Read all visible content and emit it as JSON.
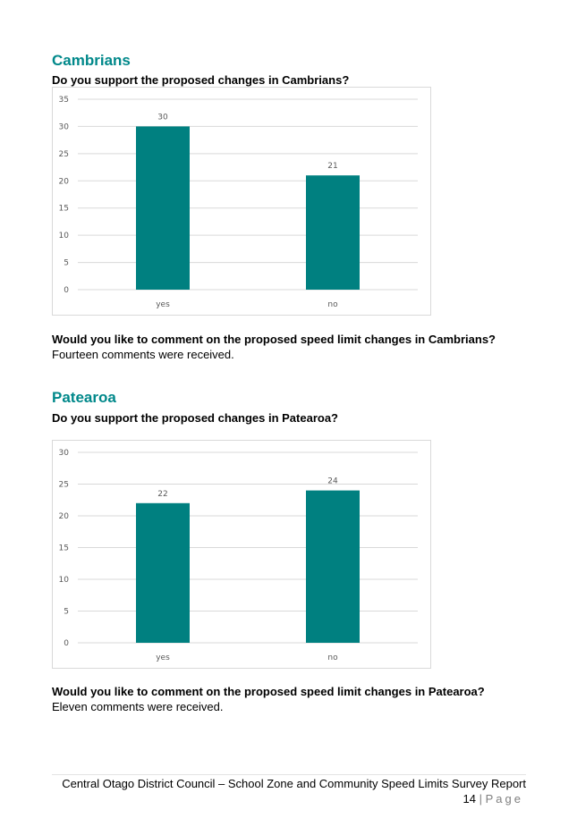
{
  "sections": [
    {
      "heading": "Cambrians",
      "question": "Do you support the proposed changes in Cambrians?",
      "comment_question": "Would you like to comment on the proposed speed limit changes in Cambrians?",
      "comment_answer": "Fourteen comments were received."
    },
    {
      "heading": "Patearoa",
      "question": "Do you support the proposed changes in Patearoa?",
      "comment_question": "Would you like to comment on the proposed speed limit changes in Patearoa?",
      "comment_answer": "Eleven comments were received."
    }
  ],
  "chart_data": [
    {
      "type": "bar",
      "categories": [
        "yes",
        "no"
      ],
      "values": [
        30,
        21
      ],
      "ylim": [
        0,
        35
      ],
      "yticks": [
        0,
        5,
        10,
        15,
        20,
        25,
        30,
        35
      ],
      "data_labels": true,
      "grid": true,
      "color": "#008080"
    },
    {
      "type": "bar",
      "categories": [
        "yes",
        "no"
      ],
      "values": [
        22,
        24
      ],
      "ylim": [
        0,
        30
      ],
      "yticks": [
        0,
        5,
        10,
        15,
        20,
        25,
        30
      ],
      "data_labels": true,
      "grid": true,
      "color": "#008080"
    }
  ],
  "footer": {
    "title": "Central Otago District Council – School Zone and Community Speed Limits Survey Report",
    "page_number": "14",
    "separator": "|",
    "page_word": "Page"
  }
}
